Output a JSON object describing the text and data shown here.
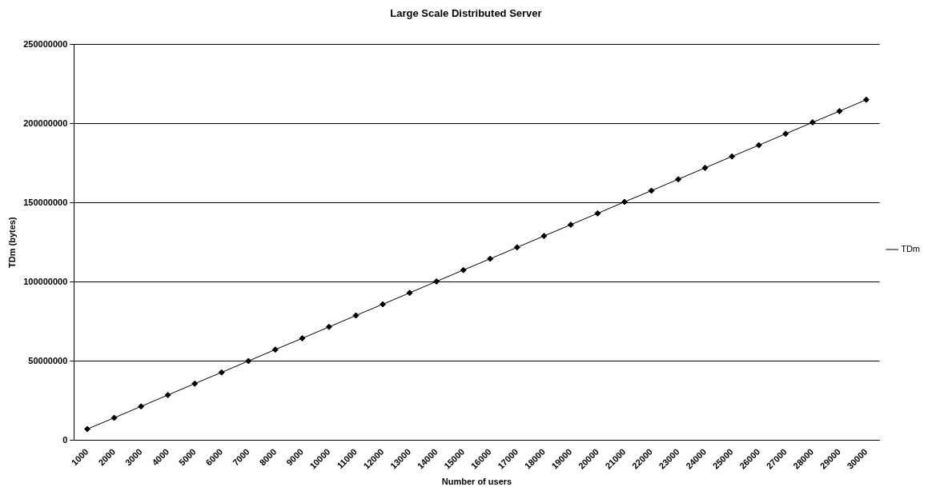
{
  "chart_data": {
    "type": "line",
    "title": "Large Scale Distributed Server",
    "xlabel": "Number of users",
    "ylabel": "TDm (bytes)",
    "categories": [
      "1000",
      "2000",
      "3000",
      "4000",
      "5000",
      "6000",
      "7000",
      "8000",
      "9000",
      "10000",
      "11000",
      "12000",
      "13000",
      "14000",
      "15000",
      "16000",
      "17000",
      "18000",
      "19000",
      "20000",
      "21000",
      "22000",
      "23000",
      "24000",
      "25000",
      "26000",
      "27000",
      "28000",
      "29000",
      "30000"
    ],
    "series": [
      {
        "name": "TDm",
        "color": "#000000",
        "values": [
          7200000,
          14300000,
          21500000,
          28700000,
          35900000,
          43000000,
          50200000,
          57400000,
          64500000,
          71700000,
          78900000,
          86000000,
          93200000,
          100400000,
          107600000,
          114700000,
          121900000,
          129100000,
          136200000,
          143400000,
          150600000,
          157700000,
          164900000,
          172100000,
          179300000,
          186400000,
          193600000,
          200800000,
          207900000,
          215100000
        ]
      }
    ],
    "ylim": [
      0,
      250000000
    ],
    "yticks": [
      0,
      50000000,
      100000000,
      150000000,
      200000000,
      250000000
    ],
    "grid": "y",
    "legend": "right",
    "marker": "diamond",
    "line_style": "solid"
  }
}
